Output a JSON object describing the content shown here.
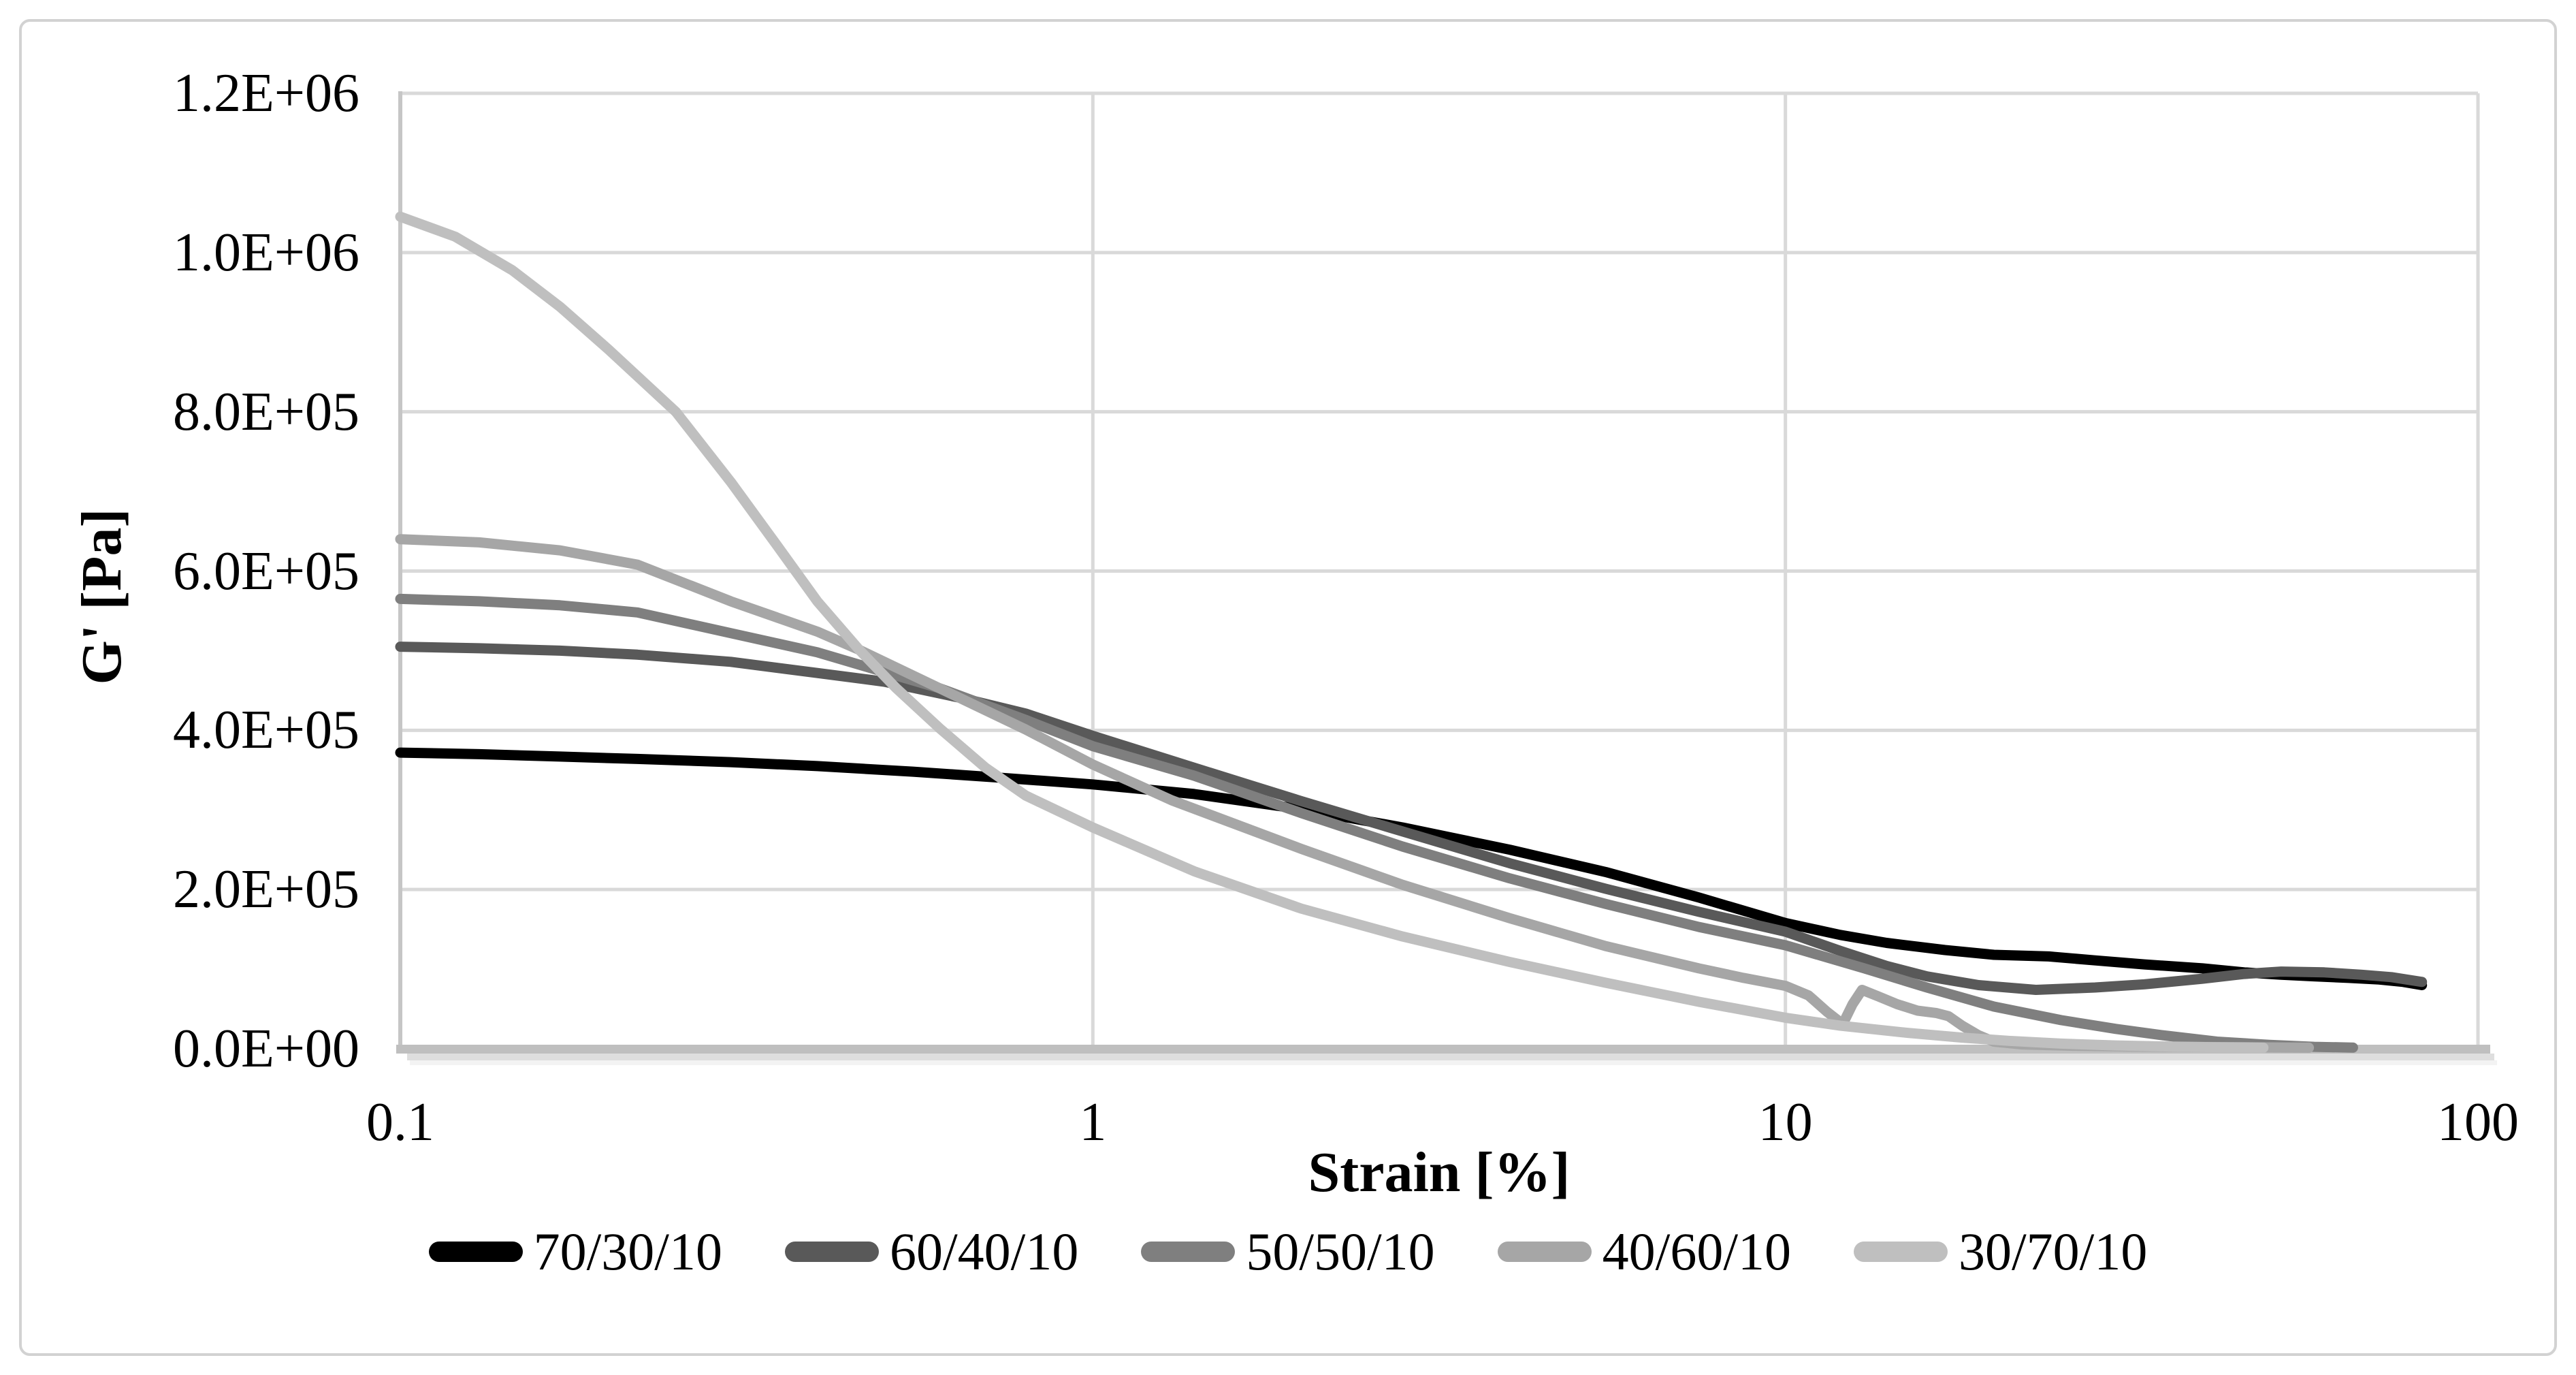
{
  "chart_data": {
    "type": "line",
    "title": "",
    "grid": true,
    "legend_position": "bottom",
    "plot_colors": {
      "gridline": "#d9d9d9",
      "plot_border": "#d9d9d9",
      "left_axis_line": "#c6c6c6",
      "bottom_axis_line": "#bfbfbf",
      "text": "#000000"
    },
    "x_axis": {
      "label": "Strain [%]",
      "scale": "log",
      "min": 0.1,
      "max": 100,
      "ticks": [
        {
          "label": "0.1",
          "value": 0.1
        },
        {
          "label": "1",
          "value": 1
        },
        {
          "label": "10",
          "value": 10
        },
        {
          "label": "100",
          "value": 100
        }
      ]
    },
    "y_axis": {
      "label": "G' [Pa]",
      "scale": "linear",
      "min": 0,
      "max": 1200000,
      "ticks": [
        {
          "label": "0.0E+00",
          "value": 0
        },
        {
          "label": "2.0E+05",
          "value": 200000
        },
        {
          "label": "4.0E+05",
          "value": 400000
        },
        {
          "label": "6.0E+05",
          "value": 600000
        },
        {
          "label": "8.0E+05",
          "value": 800000
        },
        {
          "label": "1.0E+06",
          "value": 1000000
        },
        {
          "label": "1.2E+06",
          "value": 1200000
        }
      ]
    },
    "series": [
      {
        "name": "70/30/10",
        "color": "#000000",
        "points": [
          [
            0.1,
            372000
          ],
          [
            0.13,
            370000
          ],
          [
            0.17,
            367000
          ],
          [
            0.22,
            364000
          ],
          [
            0.3,
            360000
          ],
          [
            0.4,
            355000
          ],
          [
            0.55,
            348000
          ],
          [
            0.72,
            341000
          ],
          [
            1.0,
            332000
          ],
          [
            1.4,
            320000
          ],
          [
            2.0,
            301000
          ],
          [
            2.8,
            278000
          ],
          [
            4.0,
            250000
          ],
          [
            5.5,
            222000
          ],
          [
            7.5,
            190000
          ],
          [
            10,
            158000
          ],
          [
            12,
            143000
          ],
          [
            14,
            133000
          ],
          [
            17,
            124000
          ],
          [
            20,
            118000
          ],
          [
            24,
            116000
          ],
          [
            28,
            111000
          ],
          [
            33,
            106000
          ],
          [
            40,
            101000
          ],
          [
            46,
            96000
          ],
          [
            52,
            93000
          ],
          [
            58,
            91000
          ],
          [
            65,
            89000
          ],
          [
            72,
            87000
          ],
          [
            78,
            84000
          ],
          [
            83,
            80000
          ]
        ]
      },
      {
        "name": "60/40/10",
        "color": "#595959",
        "points": [
          [
            0.1,
            505000
          ],
          [
            0.13,
            503000
          ],
          [
            0.17,
            500000
          ],
          [
            0.22,
            495000
          ],
          [
            0.3,
            486000
          ],
          [
            0.4,
            472000
          ],
          [
            0.5,
            461000
          ],
          [
            0.65,
            440000
          ],
          [
            0.8,
            421000
          ],
          [
            1.0,
            393000
          ],
          [
            1.4,
            353000
          ],
          [
            2.0,
            311000
          ],
          [
            2.8,
            273000
          ],
          [
            4.0,
            233000
          ],
          [
            5.5,
            201000
          ],
          [
            7.5,
            172000
          ],
          [
            10,
            147000
          ],
          [
            12,
            123000
          ],
          [
            14,
            104000
          ],
          [
            16,
            91000
          ],
          [
            19,
            80000
          ],
          [
            23,
            74000
          ],
          [
            28,
            77000
          ],
          [
            33,
            81000
          ],
          [
            40,
            88000
          ],
          [
            46,
            94000
          ],
          [
            52,
            97000
          ],
          [
            60,
            96000
          ],
          [
            68,
            93000
          ],
          [
            75,
            90000
          ],
          [
            83,
            84000
          ]
        ]
      },
      {
        "name": "50/50/10",
        "color": "#7f7f7f",
        "points": [
          [
            0.1,
            565000
          ],
          [
            0.13,
            562000
          ],
          [
            0.17,
            557000
          ],
          [
            0.22,
            548000
          ],
          [
            0.3,
            522000
          ],
          [
            0.4,
            498000
          ],
          [
            0.47,
            480000
          ],
          [
            0.6,
            453000
          ],
          [
            0.8,
            413000
          ],
          [
            1.0,
            380000
          ],
          [
            1.4,
            343000
          ],
          [
            2.0,
            296000
          ],
          [
            2.8,
            254000
          ],
          [
            4.0,
            214000
          ],
          [
            5.5,
            182000
          ],
          [
            7.5,
            153000
          ],
          [
            10,
            130000
          ],
          [
            13,
            101000
          ],
          [
            16,
            77000
          ],
          [
            20,
            53000
          ],
          [
            25,
            36000
          ],
          [
            30,
            25000
          ],
          [
            35,
            17000
          ],
          [
            42,
            9000
          ],
          [
            50,
            5000
          ],
          [
            58,
            2500
          ],
          [
            66,
            1500
          ]
        ]
      },
      {
        "name": "40/60/10",
        "color": "#a6a6a6",
        "points": [
          [
            0.1,
            640000
          ],
          [
            0.13,
            636000
          ],
          [
            0.17,
            626000
          ],
          [
            0.22,
            608000
          ],
          [
            0.3,
            562000
          ],
          [
            0.4,
            524000
          ],
          [
            0.46,
            501000
          ],
          [
            0.6,
            453000
          ],
          [
            0.8,
            401000
          ],
          [
            1.0,
            357000
          ],
          [
            1.3,
            312000
          ],
          [
            2.0,
            251000
          ],
          [
            2.8,
            206000
          ],
          [
            4.0,
            164000
          ],
          [
            5.5,
            129000
          ],
          [
            7.5,
            101000
          ],
          [
            8.7,
            89000
          ],
          [
            10,
            79000
          ],
          [
            10.8,
            67000
          ],
          [
            11.5,
            46000
          ],
          [
            12.1,
            31000
          ],
          [
            12.5,
            56000
          ],
          [
            12.9,
            74000
          ],
          [
            13.6,
            66000
          ],
          [
            14.5,
            56000
          ],
          [
            15.5,
            48000
          ],
          [
            16.5,
            45000
          ],
          [
            17.2,
            41000
          ],
          [
            18,
            29000
          ],
          [
            19,
            17000
          ],
          [
            20,
            9000
          ],
          [
            22,
            5500
          ],
          [
            26,
            3800
          ],
          [
            32,
            2800
          ],
          [
            40,
            2200
          ],
          [
            50,
            1700
          ],
          [
            57,
            1400
          ]
        ]
      },
      {
        "name": "30/70/10",
        "color": "#bfbfbf",
        "points": [
          [
            0.1,
            1045000
          ],
          [
            0.12,
            1020000
          ],
          [
            0.145,
            978000
          ],
          [
            0.17,
            932000
          ],
          [
            0.2,
            878000
          ],
          [
            0.25,
            800000
          ],
          [
            0.3,
            712000
          ],
          [
            0.35,
            632000
          ],
          [
            0.4,
            562000
          ],
          [
            0.46,
            501000
          ],
          [
            0.52,
            453000
          ],
          [
            0.6,
            403000
          ],
          [
            0.7,
            353000
          ],
          [
            0.8,
            318000
          ],
          [
            1.0,
            278000
          ],
          [
            1.4,
            223000
          ],
          [
            2.0,
            176000
          ],
          [
            2.8,
            141000
          ],
          [
            4.0,
            109000
          ],
          [
            5.5,
            83000
          ],
          [
            7.5,
            59000
          ],
          [
            10,
            39000
          ],
          [
            12,
            29000
          ],
          [
            15,
            20000
          ],
          [
            18,
            14000
          ],
          [
            21,
            10000
          ],
          [
            25,
            6500
          ],
          [
            30,
            4200
          ],
          [
            36,
            2800
          ],
          [
            42,
            2000
          ],
          [
            49,
            1400
          ]
        ]
      }
    ]
  }
}
